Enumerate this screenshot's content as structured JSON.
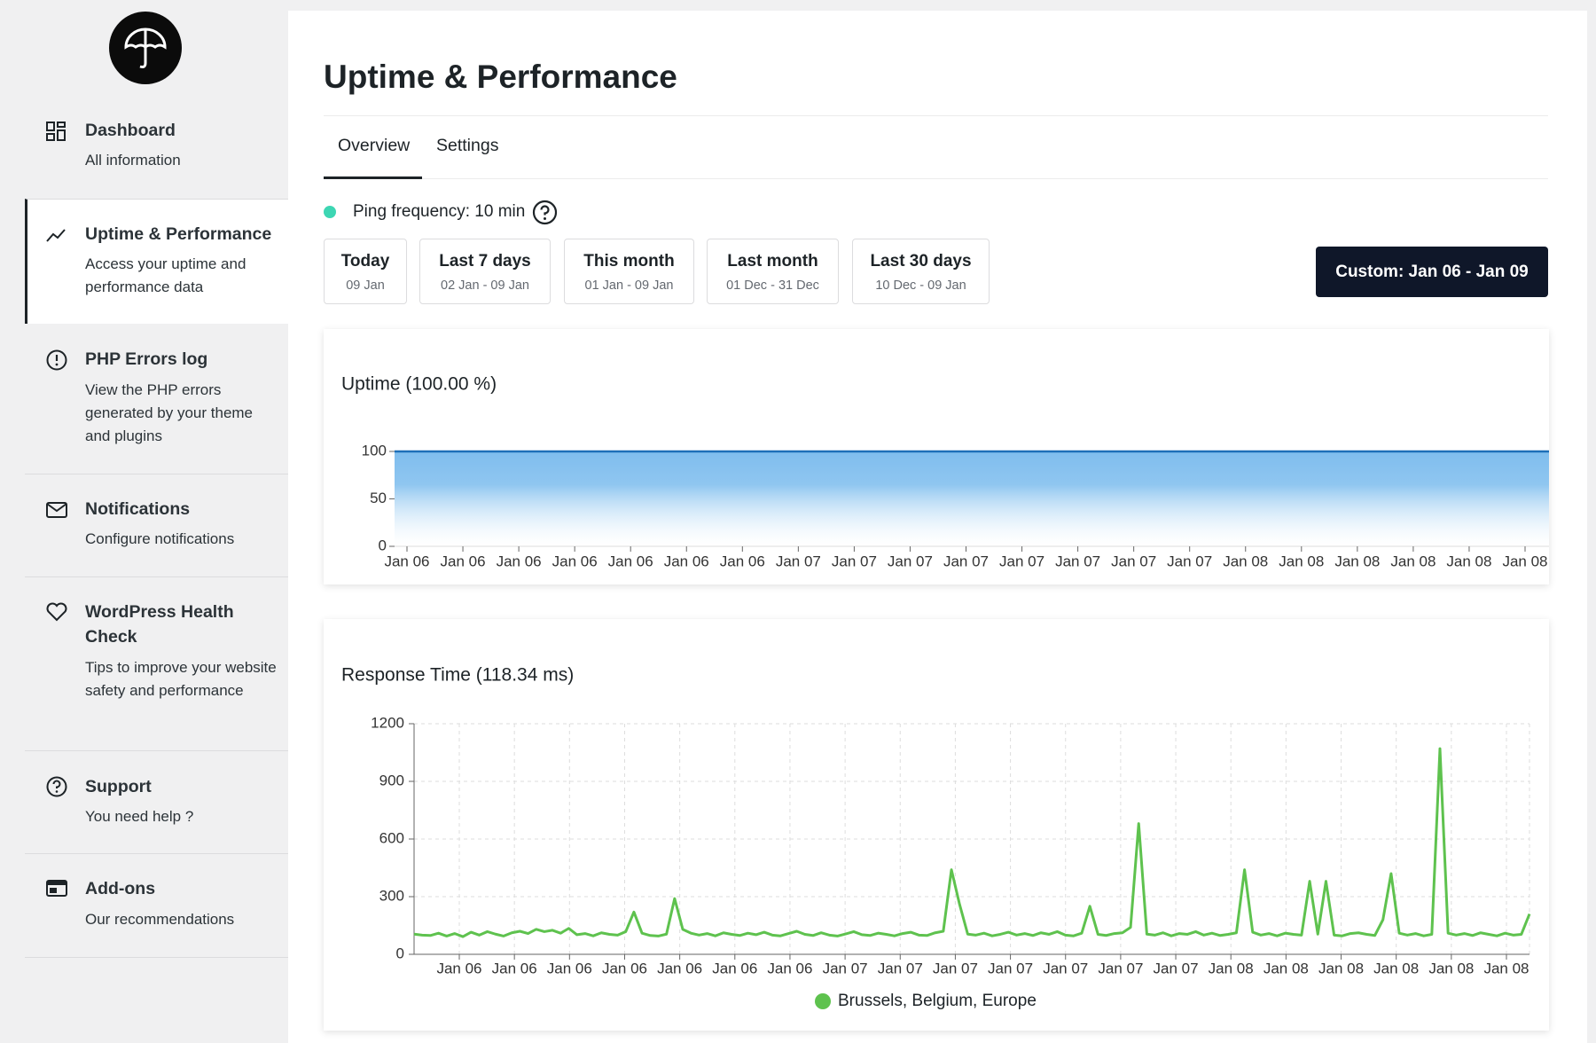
{
  "sidebar": {
    "items": [
      {
        "title": "Dashboard",
        "description": "All information"
      },
      {
        "title": "Uptime & Performance",
        "description": "Access your uptime and performance data"
      },
      {
        "title": "PHP Errors log",
        "description": "View the PHP errors generated by your theme and plugins"
      },
      {
        "title": "Notifications",
        "description": "Configure notifications"
      },
      {
        "title": "WordPress Health Check",
        "description": "Tips to improve your website safety and performance"
      },
      {
        "title": "Support",
        "description": "You need help ?"
      },
      {
        "title": "Add-ons",
        "description": "Our recommendations"
      }
    ]
  },
  "header": {
    "title": "Uptime & Performance"
  },
  "tabs": [
    "Overview",
    "Settings"
  ],
  "ping": "Ping frequency: 10 min",
  "ranges": [
    {
      "label": "Today",
      "dates": "09 Jan"
    },
    {
      "label": "Last 7 days",
      "dates": "02 Jan - 09 Jan"
    },
    {
      "label": "This month",
      "dates": "01 Jan - 09 Jan"
    },
    {
      "label": "Last month",
      "dates": "01 Dec - 31 Dec"
    },
    {
      "label": "Last 30 days",
      "dates": "10 Dec - 09 Jan"
    }
  ],
  "custom_range": "Custom: Jan 06 - Jan 09",
  "chart_data": [
    {
      "type": "area",
      "title": "Uptime (100.00 %)",
      "categories": [
        "Jan 06",
        "Jan 06",
        "Jan 06",
        "Jan 06",
        "Jan 06",
        "Jan 06",
        "Jan 06",
        "Jan 07",
        "Jan 07",
        "Jan 07",
        "Jan 07",
        "Jan 07",
        "Jan 07",
        "Jan 07",
        "Jan 07",
        "Jan 08",
        "Jan 08",
        "Jan 08",
        "Jan 08",
        "Jan 08",
        "Jan 08"
      ],
      "values": [
        100,
        100,
        100,
        100,
        100,
        100,
        100,
        100,
        100,
        100,
        100,
        100,
        100,
        100,
        100,
        100,
        100,
        100,
        100,
        100,
        100
      ],
      "color": "#1d6fb8",
      "ylim": [
        0,
        100
      ],
      "yticks": [
        0,
        50,
        100
      ]
    },
    {
      "type": "line",
      "title": "Response Time (118.34 ms)",
      "xtick_labels": [
        "Jan 06",
        "Jan 06",
        "Jan 06",
        "Jan 06",
        "Jan 06",
        "Jan 06",
        "Jan 06",
        "Jan 07",
        "Jan 07",
        "Jan 07",
        "Jan 07",
        "Jan 07",
        "Jan 07",
        "Jan 07",
        "Jan 08",
        "Jan 08",
        "Jan 08",
        "Jan 08",
        "Jan 08",
        "Jan 08"
      ],
      "series": [
        {
          "name": "Brussels, Belgium, Europe",
          "color": "#5ec24e",
          "values": [
            105,
            100,
            98,
            110,
            95,
            108,
            92,
            115,
            100,
            118,
            105,
            95,
            112,
            120,
            108,
            130,
            118,
            125,
            110,
            135,
            102,
            108,
            96,
            112,
            104,
            100,
            118,
            220,
            110,
            98,
            95,
            105,
            290,
            130,
            110,
            100,
            108,
            96,
            112,
            104,
            98,
            110,
            102,
            115,
            100,
            96,
            108,
            120,
            104,
            98,
            112,
            100,
            95,
            106,
            118,
            102,
            98,
            110,
            104,
            96,
            108,
            115,
            100,
            98,
            112,
            120,
            440,
            260,
            105,
            100,
            110,
            96,
            104,
            115,
            100,
            108,
            98,
            112,
            104,
            118,
            100,
            96,
            110,
            250,
            104,
            98,
            108,
            112,
            140,
            680,
            105,
            100,
            112,
            96,
            108,
            104,
            118,
            100,
            110,
            98,
            104,
            112,
            440,
            115,
            100,
            108,
            96,
            110,
            104,
            100,
            380,
            105,
            380,
            100,
            96,
            108,
            112,
            104,
            98,
            180,
            420,
            110,
            100,
            108,
            96,
            104,
            1070,
            110,
            100,
            108,
            98,
            112,
            104,
            96,
            110,
            100,
            104,
            210
          ]
        }
      ],
      "ylim": [
        0,
        1200
      ],
      "yticks": [
        0,
        300,
        600,
        900,
        1200
      ],
      "grid": true
    }
  ]
}
